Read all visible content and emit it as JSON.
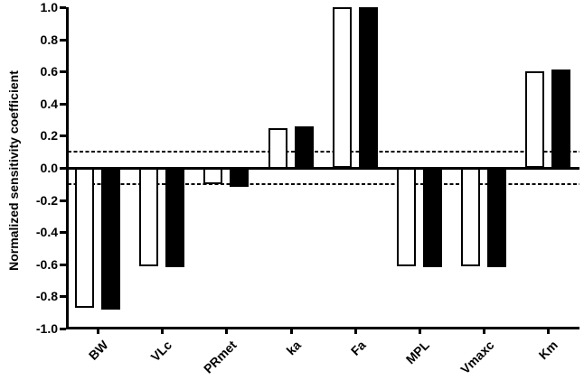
{
  "figure": {
    "background": "#ffffff",
    "ink_color": "#000000"
  },
  "chart_data": {
    "type": "bar",
    "title": "",
    "xlabel": "",
    "ylabel": "Normalized sensitivity coefficient",
    "categories": [
      "BW",
      "VLc",
      "PRmet",
      "ka",
      "Fa",
      "MPL",
      "Vmaxc",
      "Km"
    ],
    "series": [
      {
        "name": "open-bars",
        "fill": "#ffffff",
        "values": [
          -0.87,
          -0.61,
          -0.1,
          0.25,
          1.0,
          -0.61,
          -0.61,
          0.6
        ]
      },
      {
        "name": "filled-bars",
        "fill": "#000000",
        "values": [
          -0.88,
          -0.62,
          -0.12,
          0.26,
          1.0,
          -0.62,
          -0.62,
          0.61
        ]
      }
    ],
    "ylim": [
      -1.0,
      1.0
    ],
    "ytick_values": [
      1.0,
      0.8,
      0.6,
      0.4,
      0.2,
      0.0,
      -0.2,
      -0.4,
      -0.6,
      -0.8,
      -1.0
    ],
    "ytick_labels": [
      "1.0",
      "0.8",
      "0.6",
      "0.4",
      "0.2",
      "0.0",
      "-0.2",
      "-0.4",
      "-0.6",
      "-0.8",
      "-1.0"
    ],
    "reference_lines": {
      "values": [
        0.1,
        -0.1
      ],
      "style": "dashed",
      "color": "#000000"
    },
    "grid": false,
    "legend": "none",
    "bar_outline": "#000000"
  }
}
